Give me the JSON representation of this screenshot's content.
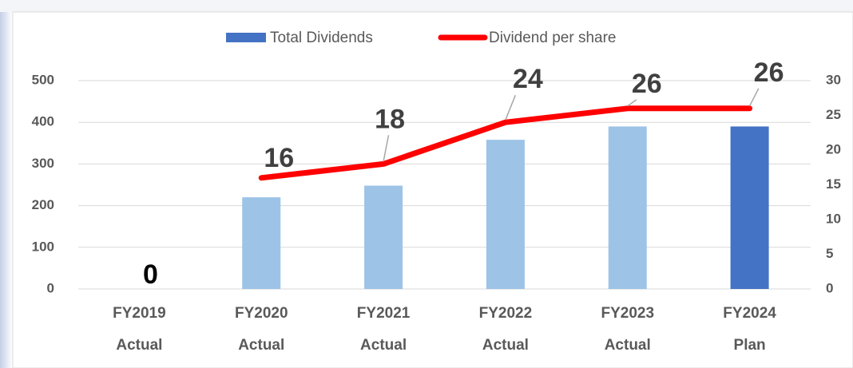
{
  "chart_data": {
    "type": "bar_line",
    "categories": [
      [
        "FY2019",
        "Actual"
      ],
      [
        "FY2020",
        "Actual"
      ],
      [
        "FY2021",
        "Actual"
      ],
      [
        "FY2022",
        "Actual"
      ],
      [
        "FY2023",
        "Actual"
      ],
      [
        "FY2024",
        "Plan"
      ]
    ],
    "series": [
      {
        "name": "Total Dividends",
        "type": "bar",
        "color": "#4472c4",
        "colors": [
          "#9dc3e6",
          "#9dc3e6",
          "#9dc3e6",
          "#9dc3e6",
          "#9dc3e6",
          "#4472c4"
        ],
        "values": [
          0,
          220,
          248,
          358,
          390,
          390
        ],
        "data_labels": [
          true,
          false,
          false,
          false,
          false,
          false
        ]
      },
      {
        "name": "Dividend per share",
        "type": "line",
        "axis": "y2",
        "color": "#ff0000",
        "values": [
          null,
          16,
          18,
          24,
          26,
          26
        ],
        "data_labels": [
          false,
          true,
          true,
          true,
          true,
          true
        ]
      }
    ],
    "ylim": [
      0,
      500
    ],
    "yticks": [
      0,
      100,
      200,
      300,
      400,
      500
    ],
    "y2lim": [
      0,
      30
    ],
    "y2ticks": [
      0,
      5,
      10,
      15,
      20,
      25,
      30
    ],
    "grid": true,
    "legend": "top"
  }
}
